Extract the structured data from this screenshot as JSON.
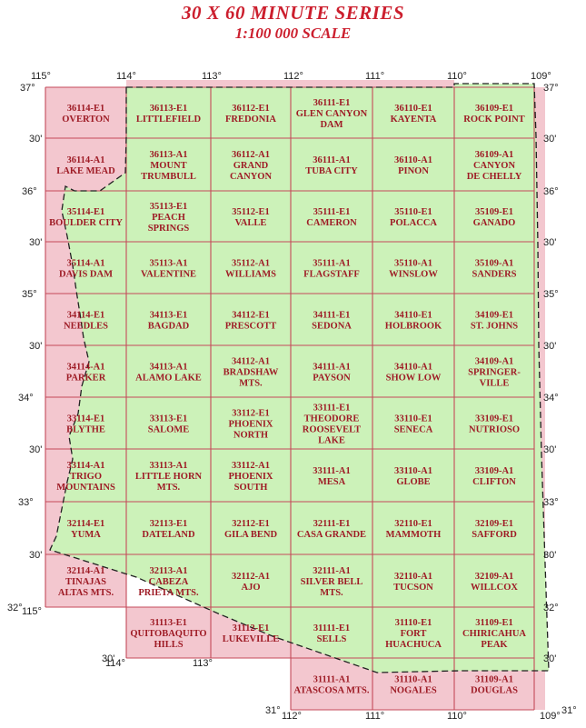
{
  "title": "30 X 60 MINUTE SERIES",
  "subtitle": "1:100 000 SCALE",
  "colors": {
    "inside": "#ccf2b9",
    "outside": "#f3c7cf",
    "grid": "#c44a5a",
    "label": "#9e1b25",
    "title": "#cc1f2e"
  },
  "lon_labels_top": [
    "115°",
    "114°",
    "113°",
    "112°",
    "111°",
    "110°",
    "109°"
  ],
  "lon_labels_bottom": [
    "115°",
    "114°",
    "113°",
    "112°",
    "111°",
    "110°",
    "109°"
  ],
  "lat_labels_left": [
    "37°",
    "30'",
    "36°",
    "30'",
    "35°",
    "30'",
    "34°",
    "30'",
    "33°",
    "30'",
    "32°",
    "30'",
    "31°"
  ],
  "lat_labels_right": [
    "37°",
    "30'",
    "36°",
    "30'",
    "35°",
    "30'",
    "34°",
    "30'",
    "33°",
    "30'",
    "32°",
    "30'",
    "31°"
  ],
  "quads": [
    {
      "row": 0,
      "col": 0,
      "lines": [
        "36114-E1",
        "OVERTON"
      ]
    },
    {
      "row": 0,
      "col": 1,
      "lines": [
        "36113-E1",
        "LITTLEFIELD"
      ]
    },
    {
      "row": 0,
      "col": 2,
      "lines": [
        "36112-E1",
        "FREDONIA"
      ]
    },
    {
      "row": 0,
      "col": 3,
      "lines": [
        "36111-E1",
        "GLEN CANYON",
        "DAM"
      ]
    },
    {
      "row": 0,
      "col": 4,
      "lines": [
        "36110-E1",
        "KAYENTA"
      ]
    },
    {
      "row": 0,
      "col": 5,
      "lines": [
        "36109-E1",
        "ROCK POINT"
      ]
    },
    {
      "row": 1,
      "col": 0,
      "lines": [
        "36114-A1",
        "LAKE MEAD"
      ]
    },
    {
      "row": 1,
      "col": 1,
      "lines": [
        "36113-A1",
        "MOUNT",
        "TRUMBULL"
      ]
    },
    {
      "row": 1,
      "col": 2,
      "lines": [
        "36112-A1",
        "GRAND",
        "CANYON"
      ]
    },
    {
      "row": 1,
      "col": 3,
      "lines": [
        "36111-A1",
        "TUBA CITY"
      ]
    },
    {
      "row": 1,
      "col": 4,
      "lines": [
        "36110-A1",
        "PINON"
      ]
    },
    {
      "row": 1,
      "col": 5,
      "lines": [
        "36109-A1",
        "CANYON",
        "DE CHELLY"
      ]
    },
    {
      "row": 2,
      "col": 0,
      "lines": [
        "35114-E1",
        "BOULDER CITY"
      ]
    },
    {
      "row": 2,
      "col": 1,
      "lines": [
        "35113-E1",
        "PEACH",
        "SPRINGS"
      ]
    },
    {
      "row": 2,
      "col": 2,
      "lines": [
        "35112-E1",
        "VALLE"
      ]
    },
    {
      "row": 2,
      "col": 3,
      "lines": [
        "35111-E1",
        "CAMERON"
      ]
    },
    {
      "row": 2,
      "col": 4,
      "lines": [
        "35110-E1",
        "POLACCA"
      ]
    },
    {
      "row": 2,
      "col": 5,
      "lines": [
        "35109-E1",
        "GANADO"
      ]
    },
    {
      "row": 3,
      "col": 0,
      "lines": [
        "35114-A1",
        "DAVIS DAM"
      ]
    },
    {
      "row": 3,
      "col": 1,
      "lines": [
        "35113-A1",
        "VALENTINE"
      ]
    },
    {
      "row": 3,
      "col": 2,
      "lines": [
        "35112-A1",
        "WILLIAMS"
      ]
    },
    {
      "row": 3,
      "col": 3,
      "lines": [
        "35111-A1",
        "FLAGSTAFF"
      ]
    },
    {
      "row": 3,
      "col": 4,
      "lines": [
        "35110-A1",
        "WINSLOW"
      ]
    },
    {
      "row": 3,
      "col": 5,
      "lines": [
        "35109-A1",
        "SANDERS"
      ]
    },
    {
      "row": 4,
      "col": 0,
      "lines": [
        "34114-E1",
        "NEEDLES"
      ]
    },
    {
      "row": 4,
      "col": 1,
      "lines": [
        "34113-E1",
        "BAGDAD"
      ]
    },
    {
      "row": 4,
      "col": 2,
      "lines": [
        "34112-E1",
        "PRESCOTT"
      ]
    },
    {
      "row": 4,
      "col": 3,
      "lines": [
        "34111-E1",
        "SEDONA"
      ]
    },
    {
      "row": 4,
      "col": 4,
      "lines": [
        "34110-E1",
        "HOLBROOK"
      ]
    },
    {
      "row": 4,
      "col": 5,
      "lines": [
        "34109-E1",
        "ST. JOHNS"
      ]
    },
    {
      "row": 5,
      "col": 0,
      "lines": [
        "34114-A1",
        "PARKER"
      ]
    },
    {
      "row": 5,
      "col": 1,
      "lines": [
        "34113-A1",
        "ALAMO LAKE"
      ]
    },
    {
      "row": 5,
      "col": 2,
      "lines": [
        "34112-A1",
        "BRADSHAW",
        "MTS."
      ]
    },
    {
      "row": 5,
      "col": 3,
      "lines": [
        "34111-A1",
        "PAYSON"
      ]
    },
    {
      "row": 5,
      "col": 4,
      "lines": [
        "34110-A1",
        "SHOW LOW"
      ]
    },
    {
      "row": 5,
      "col": 5,
      "lines": [
        "34109-A1",
        "SPRINGER-",
        "VILLE"
      ]
    },
    {
      "row": 6,
      "col": 0,
      "lines": [
        "33114-E1",
        "BLYTHE"
      ]
    },
    {
      "row": 6,
      "col": 1,
      "lines": [
        "33113-E1",
        "SALOME"
      ]
    },
    {
      "row": 6,
      "col": 2,
      "lines": [
        "33112-E1",
        "PHOENIX",
        "NORTH"
      ]
    },
    {
      "row": 6,
      "col": 3,
      "lines": [
        "33111-E1",
        "THEODORE",
        "ROOSEVELT",
        "LAKE"
      ]
    },
    {
      "row": 6,
      "col": 4,
      "lines": [
        "33110-E1",
        "SENECA"
      ]
    },
    {
      "row": 6,
      "col": 5,
      "lines": [
        "33109-E1",
        "NUTRIOSO"
      ]
    },
    {
      "row": 7,
      "col": 0,
      "lines": [
        "33114-A1",
        "TRIGO",
        "MOUNTAINS"
      ]
    },
    {
      "row": 7,
      "col": 1,
      "lines": [
        "33113-A1",
        "LITTLE HORN",
        "MTS."
      ]
    },
    {
      "row": 7,
      "col": 2,
      "lines": [
        "33112-A1",
        "PHOENIX",
        "SOUTH"
      ]
    },
    {
      "row": 7,
      "col": 3,
      "lines": [
        "33111-A1",
        "MESA"
      ]
    },
    {
      "row": 7,
      "col": 4,
      "lines": [
        "33110-A1",
        "GLOBE"
      ]
    },
    {
      "row": 7,
      "col": 5,
      "lines": [
        "33109-A1",
        "CLIFTON"
      ]
    },
    {
      "row": 8,
      "col": 0,
      "lines": [
        "32114-E1",
        "YUMA"
      ]
    },
    {
      "row": 8,
      "col": 1,
      "lines": [
        "32113-E1",
        "DATELAND"
      ]
    },
    {
      "row": 8,
      "col": 2,
      "lines": [
        "32112-E1",
        "GILA BEND"
      ]
    },
    {
      "row": 8,
      "col": 3,
      "lines": [
        "32111-E1",
        "CASA GRANDE"
      ]
    },
    {
      "row": 8,
      "col": 4,
      "lines": [
        "32110-E1",
        "MAMMOTH"
      ]
    },
    {
      "row": 8,
      "col": 5,
      "lines": [
        "32109-E1",
        "SAFFORD"
      ]
    },
    {
      "row": 9,
      "col": 0,
      "lines": [
        "32114-A1",
        "TINAJAS",
        "ALTAS MTS."
      ]
    },
    {
      "row": 9,
      "col": 1,
      "lines": [
        "32113-A1",
        "CABEZA",
        "PRIETA MTS."
      ]
    },
    {
      "row": 9,
      "col": 2,
      "lines": [
        "32112-A1",
        "AJO"
      ]
    },
    {
      "row": 9,
      "col": 3,
      "lines": [
        "32111-A1",
        "SILVER BELL",
        "MTS."
      ]
    },
    {
      "row": 9,
      "col": 4,
      "lines": [
        "32110-A1",
        "TUCSON"
      ]
    },
    {
      "row": 9,
      "col": 5,
      "lines": [
        "32109-A1",
        "WILLCOX"
      ]
    },
    {
      "row": 10,
      "col": 1,
      "lines": [
        "31113-E1",
        "QUITOBAQUITO",
        "HILLS"
      ]
    },
    {
      "row": 10,
      "col": 2,
      "lines": [
        "31112-E1",
        "LUKEVILLE"
      ]
    },
    {
      "row": 10,
      "col": 3,
      "lines": [
        "31111-E1",
        "SELLS"
      ]
    },
    {
      "row": 10,
      "col": 4,
      "lines": [
        "31110-E1",
        "FORT",
        "HUACHUCA"
      ]
    },
    {
      "row": 10,
      "col": 5,
      "lines": [
        "31109-E1",
        "CHIRICAHUA",
        "PEAK"
      ]
    },
    {
      "row": 11,
      "col": 3,
      "lines": [
        "31111-A1",
        "ATASCOSA MTS."
      ]
    },
    {
      "row": 11,
      "col": 4,
      "lines": [
        "31110-A1",
        "NOGALES"
      ]
    },
    {
      "row": 11,
      "col": 5,
      "lines": [
        "31109-A1",
        "DOUGLAS"
      ]
    }
  ]
}
